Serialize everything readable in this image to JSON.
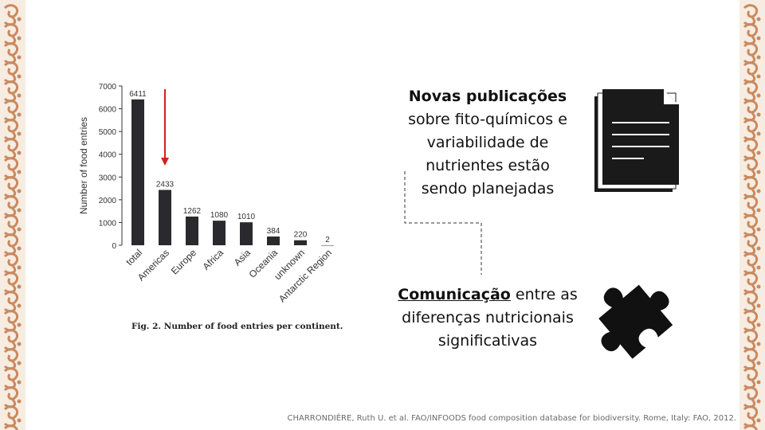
{
  "border": {
    "color": "#c98a60",
    "background": "#f6ece1"
  },
  "chart_data": {
    "type": "bar",
    "categories": [
      "total",
      "Americas",
      "Europe",
      "Africa",
      "Asia",
      "Oceania",
      "unknown",
      "Antarctic Region"
    ],
    "values": [
      6411,
      2433,
      1262,
      1080,
      1010,
      384,
      220,
      2
    ],
    "value_labels": [
      "6411",
      "2433",
      "1262",
      "1080",
      "1010",
      "384",
      "220",
      "2"
    ],
    "ylabel": "Number of food entries",
    "xlabel": "",
    "ylim": [
      0,
      7000
    ],
    "yticks": [
      0,
      1000,
      2000,
      3000,
      4000,
      5000,
      6000,
      7000
    ],
    "ytick_labels": [
      "0",
      "1000",
      "2000",
      "3000",
      "4000",
      "5000",
      "6000",
      "7000"
    ],
    "bar_color": "#2a2a2e",
    "grid": false,
    "annotation": {
      "type": "arrow",
      "target_category": "Americas",
      "color": "#d42020"
    },
    "caption_label": "Fig. 2.",
    "caption_text": "Number of food entries per continent."
  },
  "publications": {
    "line1": "Novas publicações",
    "line2": "sobre fito-químicos e",
    "line3": "variabilidade de",
    "line4": "nutrientes estão",
    "line5": "sendo planejadas"
  },
  "communication": {
    "bold": "Comunicação",
    "rest": " entre as",
    "line2": "diferenças nutricionais",
    "line3": "significativas"
  },
  "icons": {
    "document": "document-icon",
    "puzzle": "puzzle-piece-icon"
  },
  "citation": "CHARRONDIÈRE, Ruth U. et al. FAO/INFOODS food composition database for biodiversity. Rome, Italy: FAO, 2012."
}
